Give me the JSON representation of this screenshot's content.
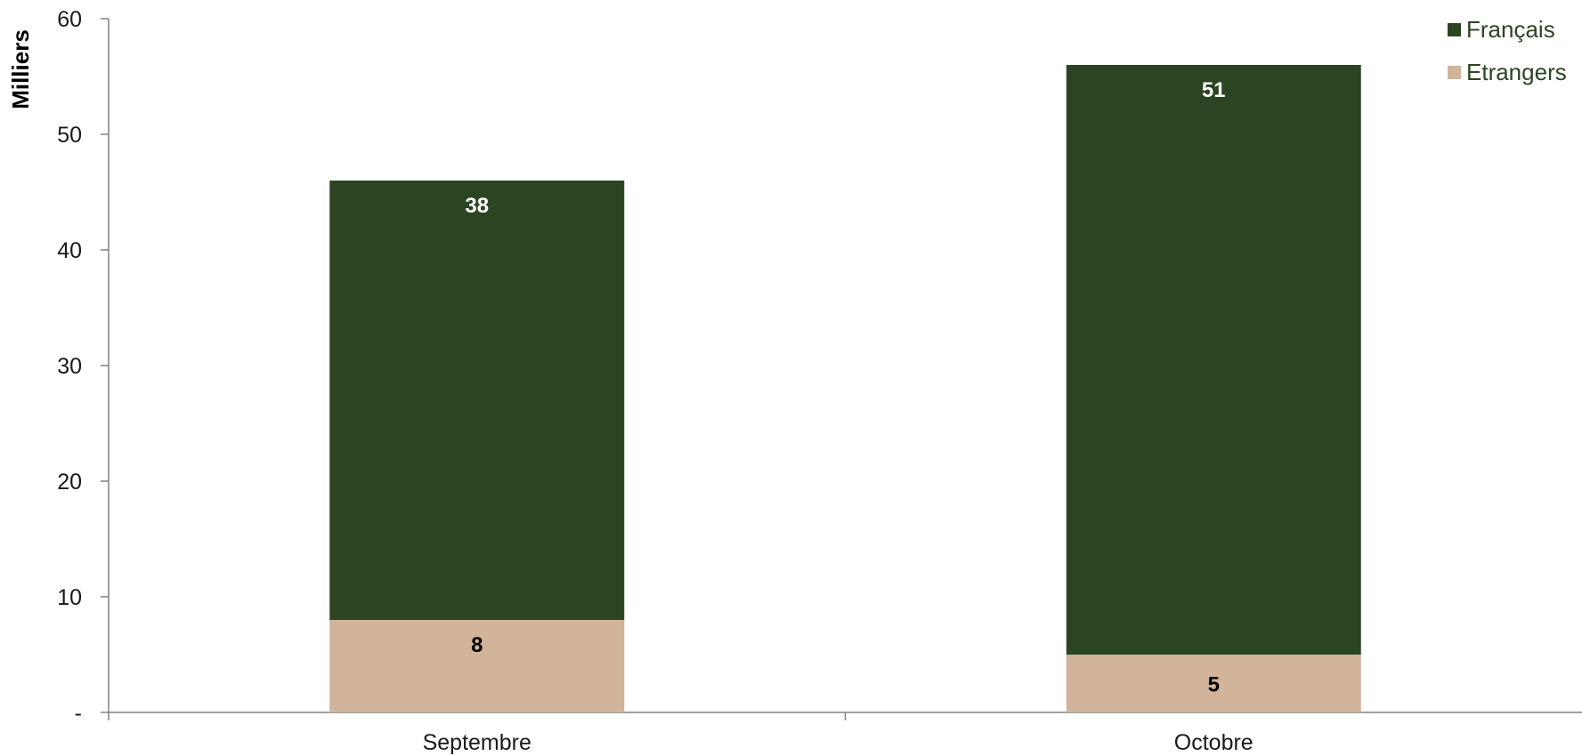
{
  "chart_data": {
    "type": "bar",
    "stacked": true,
    "categories": [
      "Septembre",
      "Octobre"
    ],
    "series": [
      {
        "name": "Etrangers",
        "values": [
          8,
          5
        ],
        "color": "#d1b49a",
        "label_color": "#000000"
      },
      {
        "name": "Français",
        "values": [
          38,
          51
        ],
        "color": "#2b4522",
        "label_color": "#ffffff"
      }
    ],
    "data_labels": [
      [
        "8",
        "5"
      ],
      [
        "38",
        "51"
      ]
    ],
    "ylabel": "Milliers",
    "xlabel": "",
    "ylim": [
      0,
      60
    ],
    "yticks": [
      0,
      10,
      20,
      30,
      40,
      50,
      60
    ],
    "ytick_labels": [
      "-",
      "10",
      "20",
      "30",
      "40",
      "50",
      "60"
    ],
    "legend": {
      "position": "top-right",
      "order": [
        "Français",
        "Etrangers"
      ],
      "text_color": "#2b4522"
    },
    "grid": false,
    "axis_color": "#808080"
  }
}
